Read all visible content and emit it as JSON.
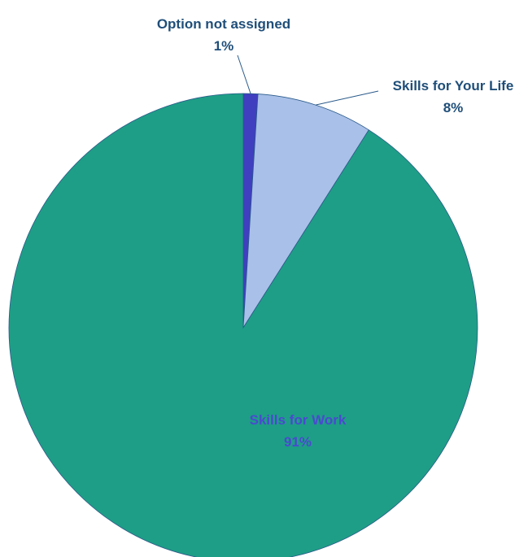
{
  "chart_data": {
    "type": "pie",
    "title": "",
    "slices": [
      {
        "label": "Option not assigned",
        "value": 1,
        "value_label": "1%",
        "color": "#3f3fbf",
        "label_color": "#1f4e79"
      },
      {
        "label": "Skills for Your Life",
        "value": 8,
        "value_label": "8%",
        "color": "#a9c0e8",
        "label_color": "#1f4e79"
      },
      {
        "label": "Skills for Work",
        "value": 91,
        "value_label": "91%",
        "color": "#1e9e86",
        "label_color": "#4a4ad0"
      }
    ],
    "start_angle_deg": 0,
    "direction": "clockwise",
    "legend": "none"
  }
}
